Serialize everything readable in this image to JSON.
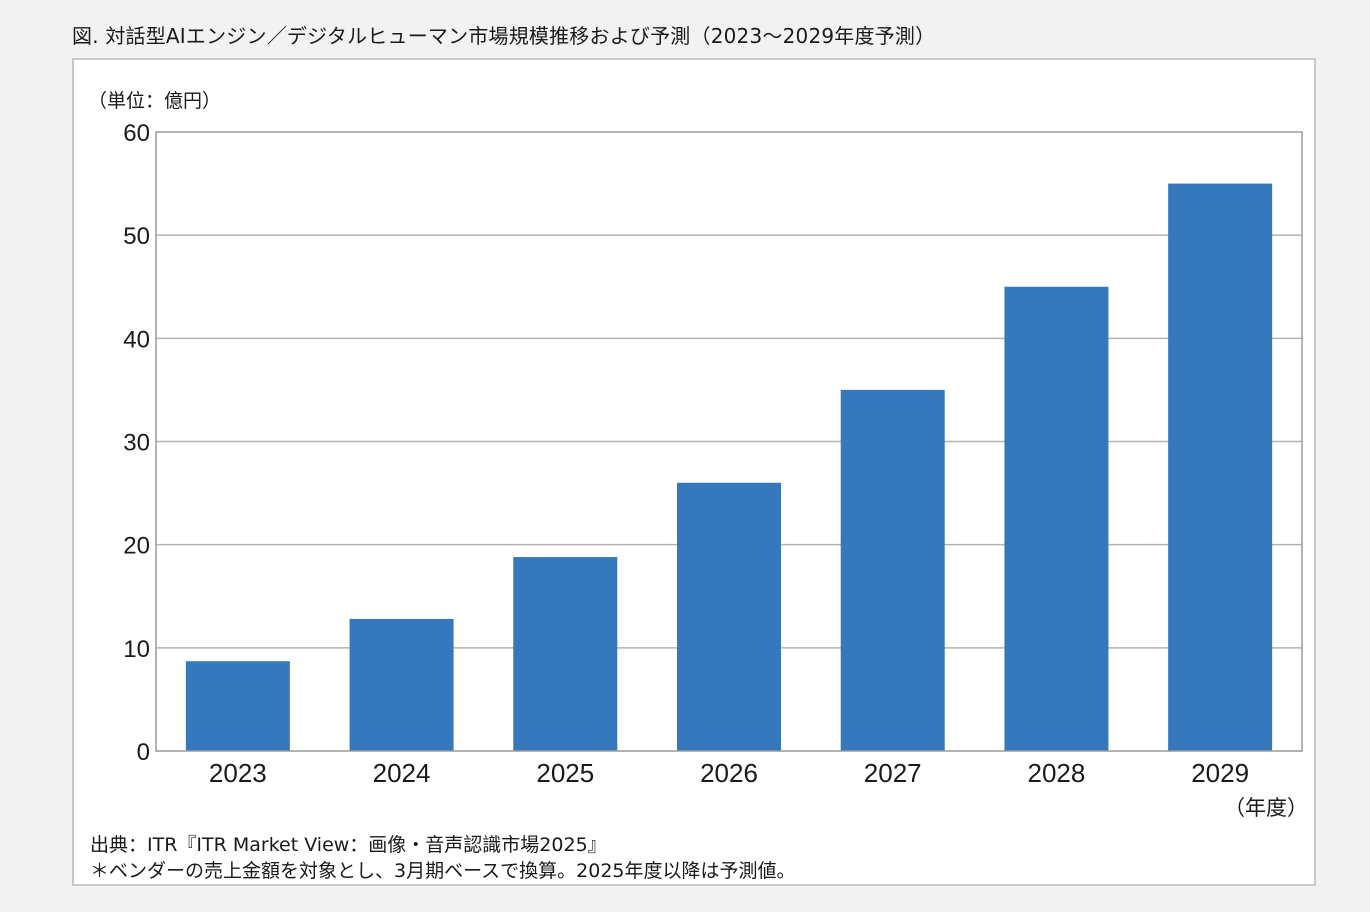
{
  "figure": {
    "title": "図. 対話型AIエンジン／デジタルヒューマン市場規模推移および予測（2023〜2029年度予測）"
  },
  "chart_data": {
    "type": "bar",
    "title": "",
    "unit_label": "（単位：億円）",
    "xlabel": "（年度）",
    "ylabel": "",
    "categories": [
      "2023",
      "2024",
      "2025",
      "2026",
      "2027",
      "2028",
      "2029"
    ],
    "values": [
      8.7,
      12.8,
      18.8,
      26.0,
      35.0,
      45.0,
      55.0
    ],
    "ylim": [
      0,
      60
    ],
    "yticks": [
      0,
      10,
      20,
      30,
      40,
      50,
      60
    ],
    "grid": true,
    "legend": "none",
    "bar_color": "#3578bc"
  },
  "notes": {
    "source": "出典：ITR『ITR Market View：画像・音声認識市場2025』",
    "footnote": "＊ベンダーの売上金額を対象とし、3月期ベースで換算。2025年度以降は予測値。"
  }
}
